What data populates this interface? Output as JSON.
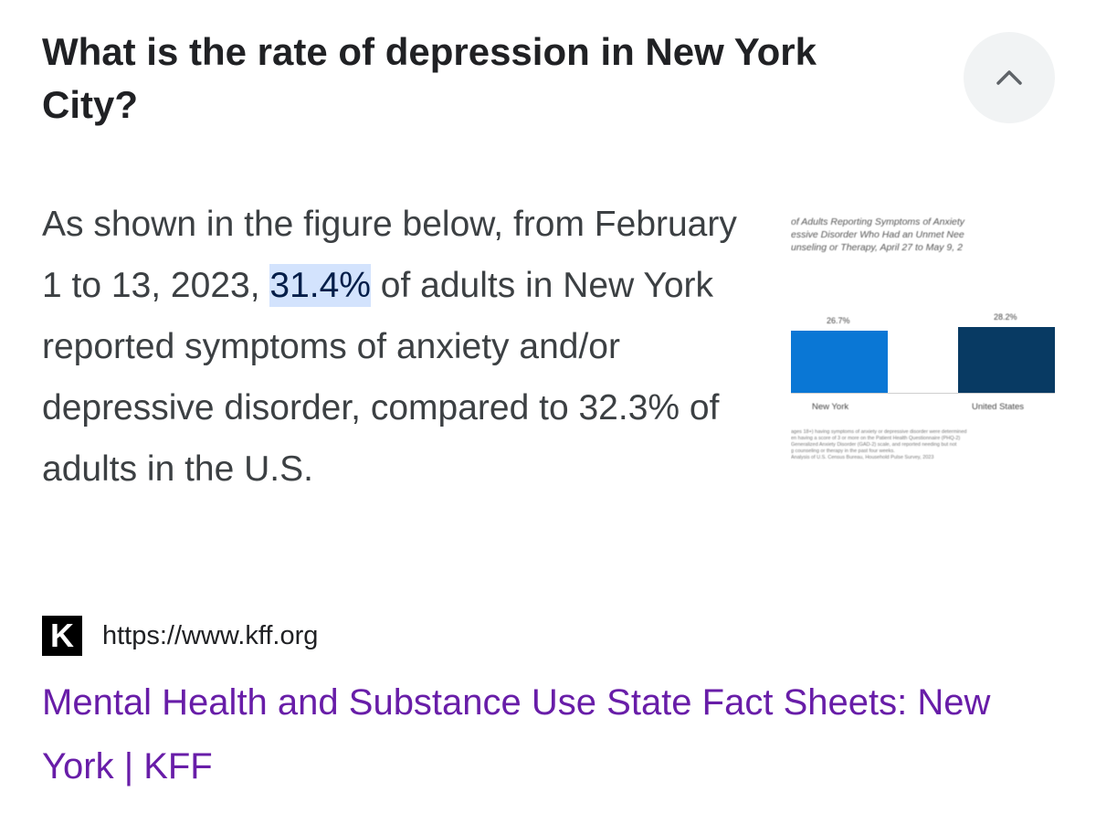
{
  "question": "What is the rate of depression in New York City?",
  "answer": {
    "prefix": "As shown in the figure below, from February 1 to 13, 2023, ",
    "highlight": "31.4%",
    "suffix": " of adults in New York reported symptoms of anxiety and/or depressive disorder, compared to 32.3% of adults in the U.S."
  },
  "collapse_icon": "chevron-up-icon",
  "thumbnail": {
    "title": "of Adults Reporting Symptoms of Anxiety\nessive Disorder Who Had an Unmet Nee\nunseling or Therapy, April 27 to May 9, 2",
    "notes": "ages 18+) having symptoms of anxiety or depressive disorder were determined\nen having a score of 3 or more on the Patient Health Questionnaire (PHQ-2)\nGeneralized Anxiety Disorder (GAD-2) scale, and reported needing but not\ng counseling or therapy in the past four weeks.\nAnalysis of U.S. Census Bureau, Household Pulse Survey, 2023",
    "chart_data": {
      "type": "bar",
      "categories": [
        "New York",
        "United States"
      ],
      "values": [
        26.7,
        28.2
      ],
      "value_labels": [
        "26.7%",
        "28.2%"
      ],
      "colors": [
        "#0a77d5",
        "#083a63"
      ]
    }
  },
  "source": {
    "favicon_letter": "K",
    "url": "https://www.kff.org"
  },
  "result_title": "Mental Health and Substance Use State Fact Sheets: New York | KFF"
}
